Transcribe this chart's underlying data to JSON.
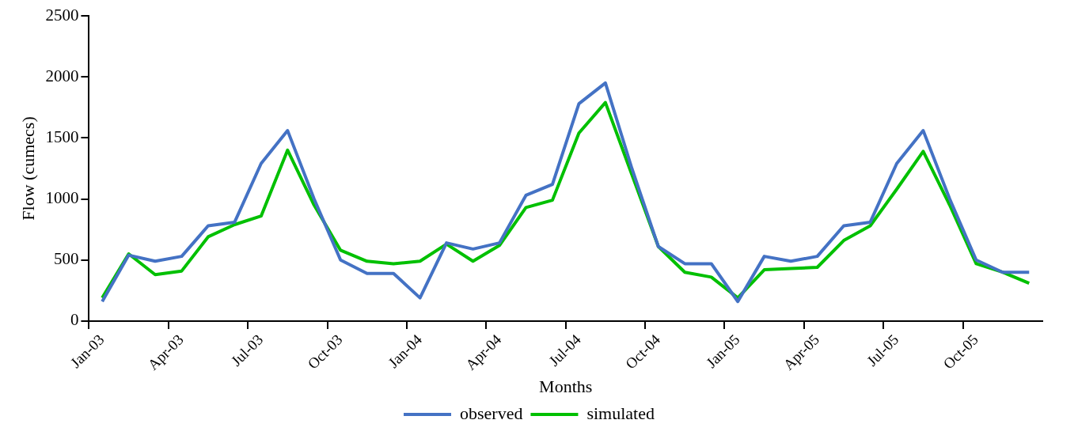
{
  "chart_data": {
    "type": "line",
    "xlabel": "Months",
    "ylabel": "Flow (cumecs)",
    "categories": [
      "Jan-03",
      null,
      null,
      "Apr-03",
      null,
      null,
      "Jul-03",
      null,
      null,
      "Oct-03",
      null,
      null,
      "Jan-04",
      null,
      null,
      "Apr-04",
      null,
      null,
      "Jul-04",
      null,
      null,
      "Oct-04",
      null,
      null,
      "Jan-05",
      null,
      null,
      "Apr-05",
      null,
      null,
      "Jul-05",
      null,
      null,
      "Oct-05",
      null,
      null
    ],
    "series": [
      {
        "name": "observed",
        "color": "#4472c4",
        "values": [
          160,
          540,
          490,
          530,
          780,
          810,
          1290,
          1560,
          1000,
          500,
          390,
          390,
          190,
          640,
          590,
          640,
          1030,
          1120,
          1780,
          1950,
          1250,
          610,
          470,
          470,
          160,
          530,
          490,
          530,
          780,
          810,
          1290,
          1560,
          1000,
          500,
          400,
          400
        ]
      },
      {
        "name": "simulated",
        "color": "#00c000",
        "values": [
          190,
          550,
          380,
          410,
          690,
          790,
          860,
          1400,
          950,
          580,
          490,
          470,
          490,
          630,
          490,
          620,
          930,
          990,
          1540,
          1790,
          1200,
          610,
          400,
          360,
          190,
          420,
          430,
          440,
          660,
          780,
          1080,
          1390,
          950,
          470,
          400,
          310
        ]
      }
    ],
    "ylim": [
      0,
      2500
    ],
    "yticks": [
      0,
      500,
      1000,
      1500,
      2000,
      2500
    ],
    "grid": false,
    "legend": "bottom",
    "marker": "none",
    "line_style": "solid"
  }
}
